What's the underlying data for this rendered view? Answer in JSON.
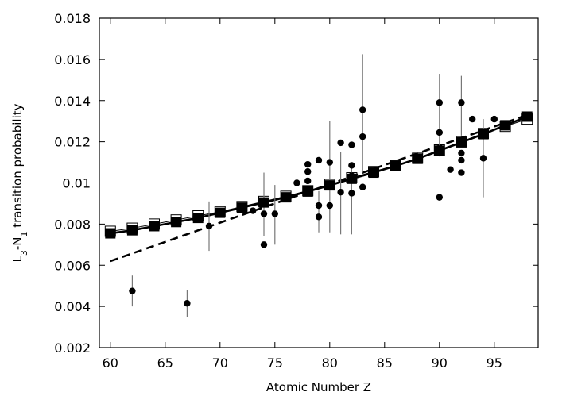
{
  "chart_data": {
    "type": "scatter",
    "title": "",
    "xlabel": "Atomic Number Z",
    "ylabel_parts": [
      {
        "text": "L",
        "baseline": "normal"
      },
      {
        "text": "3",
        "baseline": "sub"
      },
      {
        "text": "-N",
        "baseline": "normal"
      },
      {
        "text": "1",
        "baseline": "sub"
      },
      {
        "text": " transition probability",
        "baseline": "normal"
      }
    ],
    "xlim": [
      59,
      99
    ],
    "ylim": [
      0.002,
      0.018
    ],
    "x_ticks": [
      60,
      65,
      70,
      75,
      80,
      85,
      90,
      95
    ],
    "x_tick_labels": [
      "60",
      "65",
      "70",
      "75",
      "80",
      "85",
      "90",
      "95"
    ],
    "y_ticks": [
      0.002,
      0.004,
      0.006,
      0.008,
      0.01,
      0.012,
      0.014,
      0.016,
      0.018
    ],
    "y_tick_labels": [
      "0.002",
      "0.004",
      "0.006",
      "0.008",
      "0.01",
      "0.012",
      "0.014",
      "0.016",
      "0.018"
    ],
    "grid": false,
    "series": [
      {
        "style": "filled-circle-with-error-bars",
        "color": "#000000",
        "points": [
          {
            "x": 62,
            "y": 0.00475,
            "yerr_low": 0.004,
            "yerr_high": 0.0055
          },
          {
            "x": 67,
            "y": 0.00415,
            "yerr_low": 0.0035,
            "yerr_high": 0.0048
          },
          {
            "x": 69,
            "y": 0.0079,
            "yerr_low": 0.0067,
            "yerr_high": 0.0091
          },
          {
            "x": 73,
            "y": 0.00865
          },
          {
            "x": 74,
            "y": 0.007
          },
          {
            "x": 74,
            "y": 0.0085,
            "yerr_low": 0.0074,
            "yerr_high": 0.0105
          },
          {
            "x": 75,
            "y": 0.0085,
            "yerr_low": 0.007,
            "yerr_high": 0.0099
          },
          {
            "x": 77,
            "y": 0.01
          },
          {
            "x": 78,
            "y": 0.0101
          },
          {
            "x": 78,
            "y": 0.01055
          },
          {
            "x": 78,
            "y": 0.0109
          },
          {
            "x": 79,
            "y": 0.00835,
            "yerr_low": 0.0076,
            "yerr_high": 0.0096
          },
          {
            "x": 79,
            "y": 0.0089
          },
          {
            "x": 79,
            "y": 0.0111
          },
          {
            "x": 80,
            "y": 0.0089,
            "yerr_low": 0.0076,
            "yerr_high": 0.013
          },
          {
            "x": 80,
            "y": 0.011
          },
          {
            "x": 81,
            "y": 0.00955,
            "yerr_low": 0.0075,
            "yerr_high": 0.0115
          },
          {
            "x": 81,
            "y": 0.01195
          },
          {
            "x": 82,
            "y": 0.0095,
            "yerr_low": 0.0075,
            "yerr_high": 0.011
          },
          {
            "x": 82,
            "y": 0.01035
          },
          {
            "x": 82,
            "y": 0.01085
          },
          {
            "x": 82,
            "y": 0.01185
          },
          {
            "x": 83,
            "y": 0.0098
          },
          {
            "x": 83,
            "y": 0.01225,
            "yerr_low": 0.0105,
            "yerr_high": 0.01625
          },
          {
            "x": 83,
            "y": 0.01355
          },
          {
            "x": 90,
            "y": 0.0093
          },
          {
            "x": 90,
            "y": 0.01145
          },
          {
            "x": 90,
            "y": 0.01245,
            "yerr_low": 0.0113,
            "yerr_high": 0.0153
          },
          {
            "x": 90,
            "y": 0.0139
          },
          {
            "x": 91,
            "y": 0.01065
          },
          {
            "x": 92,
            "y": 0.0105
          },
          {
            "x": 92,
            "y": 0.0111
          },
          {
            "x": 92,
            "y": 0.01145
          },
          {
            "x": 92,
            "y": 0.0139,
            "yerr_low": 0.0123,
            "yerr_high": 0.0152
          },
          {
            "x": 93,
            "y": 0.0131
          },
          {
            "x": 94,
            "y": 0.0112,
            "yerr_low": 0.0093,
            "yerr_high": 0.0131
          },
          {
            "x": 95,
            "y": 0.0131
          }
        ]
      },
      {
        "style": "filled-square-solid-line",
        "color": "#000000",
        "x": [
          60,
          62,
          64,
          66,
          68,
          70,
          72,
          74,
          76,
          78,
          80,
          82,
          84,
          86,
          88,
          90,
          92,
          94,
          96,
          98
        ],
        "y": [
          0.00755,
          0.0077,
          0.0079,
          0.0081,
          0.0083,
          0.00855,
          0.0088,
          0.00905,
          0.0093,
          0.00958,
          0.00988,
          0.0102,
          0.0105,
          0.01083,
          0.01117,
          0.01157,
          0.01197,
          0.01237,
          0.0128,
          0.01322
        ]
      },
      {
        "style": "open-square-solid-line",
        "color": "#000000",
        "x": [
          60,
          62,
          64,
          66,
          68,
          70,
          72,
          74,
          76,
          78,
          80,
          82,
          84,
          86,
          88,
          90,
          92,
          94,
          96,
          98
        ],
        "y": [
          0.00765,
          0.0078,
          0.008,
          0.0082,
          0.0084,
          0.0086,
          0.00885,
          0.0091,
          0.00935,
          0.00962,
          0.00992,
          0.01025,
          0.01055,
          0.01085,
          0.0112,
          0.0116,
          0.012,
          0.0124,
          0.01275,
          0.0131
        ]
      },
      {
        "style": "dashed-line",
        "color": "#000000",
        "x": [
          60,
          98
        ],
        "y": [
          0.0062,
          0.0133
        ]
      }
    ]
  }
}
